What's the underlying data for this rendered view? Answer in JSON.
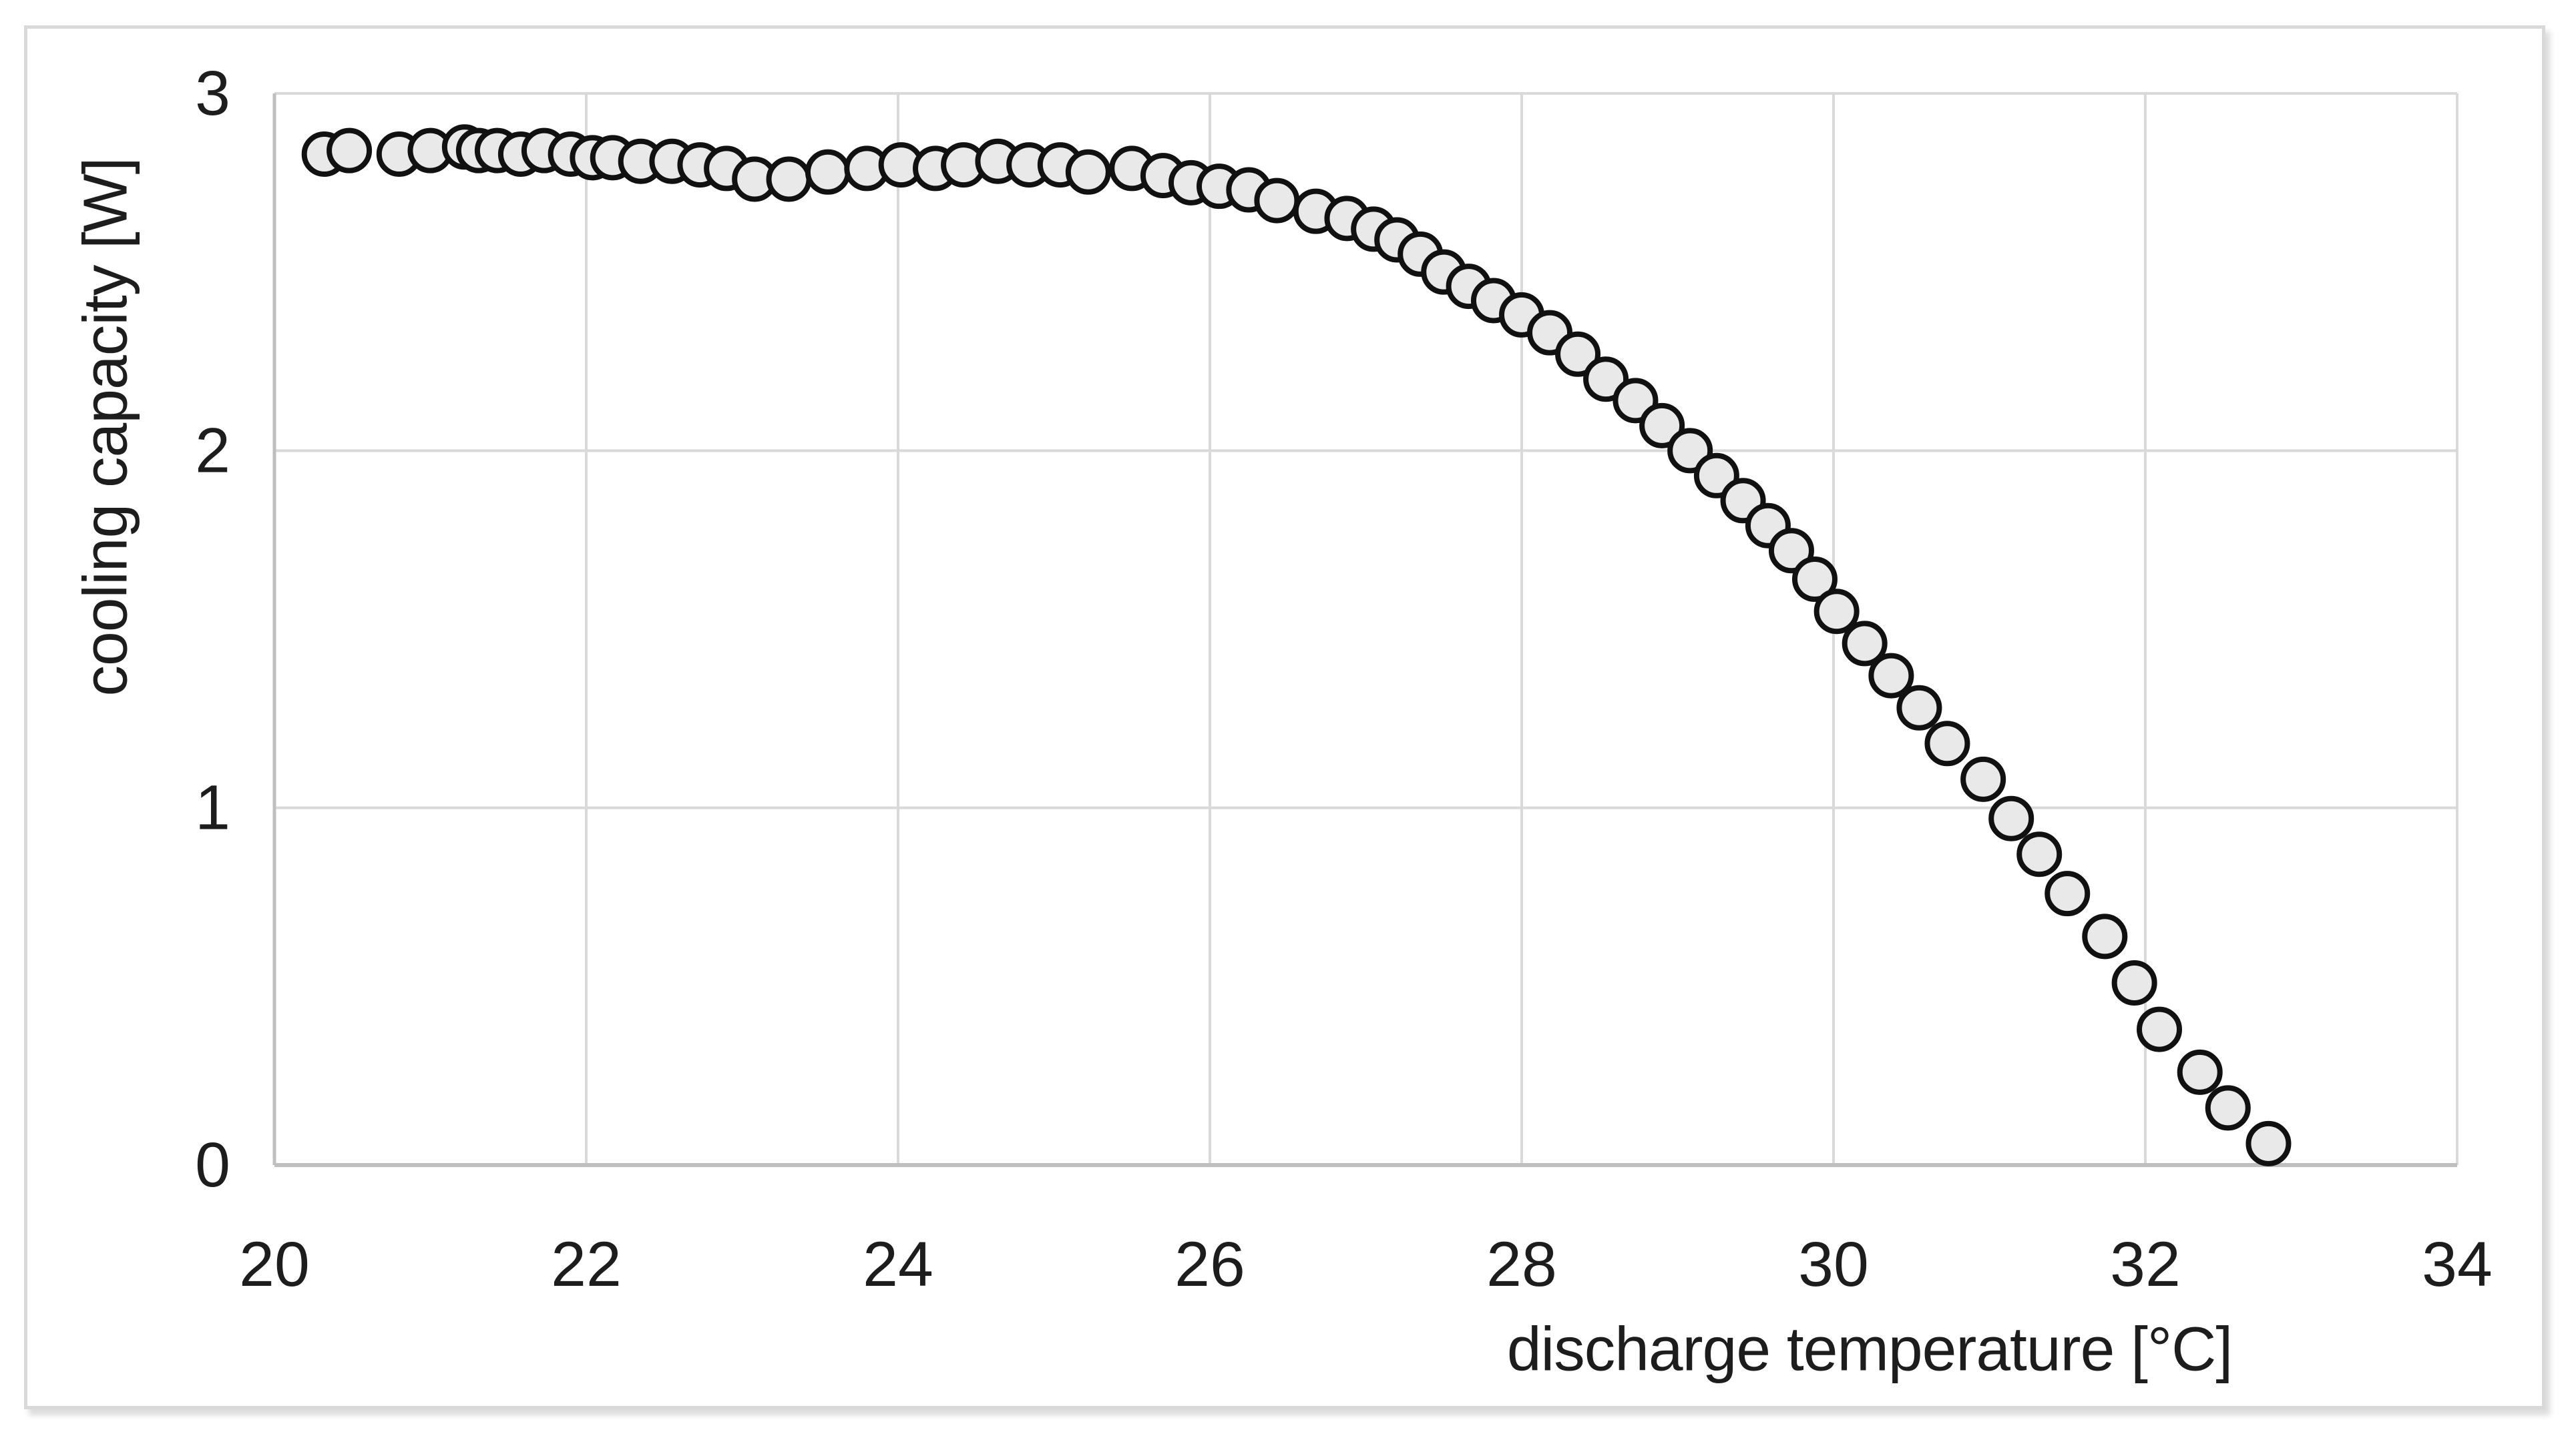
{
  "chart_data": {
    "type": "scatter",
    "title": "",
    "xlabel": "discharge temperature [°C]",
    "ylabel": "cooling capacity [W]",
    "xlim": [
      20,
      34
    ],
    "ylim": [
      0,
      3
    ],
    "x_ticks": [
      20,
      22,
      24,
      26,
      28,
      30,
      32,
      34
    ],
    "y_ticks": [
      0,
      1,
      2,
      3
    ],
    "grid": "on",
    "legend": "none",
    "series": [
      {
        "name": "cooling capacity",
        "marker": "circle",
        "points": [
          [
            20.32,
            2.83
          ],
          [
            20.48,
            2.84
          ],
          [
            20.8,
            2.83
          ],
          [
            21.0,
            2.84
          ],
          [
            21.22,
            2.85
          ],
          [
            21.31,
            2.84
          ],
          [
            21.43,
            2.84
          ],
          [
            21.58,
            2.83
          ],
          [
            21.73,
            2.84
          ],
          [
            21.9,
            2.83
          ],
          [
            22.04,
            2.82
          ],
          [
            22.17,
            2.82
          ],
          [
            22.35,
            2.81
          ],
          [
            22.55,
            2.81
          ],
          [
            22.73,
            2.8
          ],
          [
            22.9,
            2.79
          ],
          [
            23.08,
            2.76
          ],
          [
            23.3,
            2.76
          ],
          [
            23.55,
            2.78
          ],
          [
            23.8,
            2.79
          ],
          [
            24.02,
            2.8
          ],
          [
            24.24,
            2.79
          ],
          [
            24.42,
            2.8
          ],
          [
            24.64,
            2.81
          ],
          [
            24.84,
            2.8
          ],
          [
            25.04,
            2.8
          ],
          [
            25.22,
            2.78
          ],
          [
            25.5,
            2.79
          ],
          [
            25.7,
            2.77
          ],
          [
            25.88,
            2.75
          ],
          [
            26.06,
            2.74
          ],
          [
            26.25,
            2.73
          ],
          [
            26.43,
            2.7
          ],
          [
            26.68,
            2.67
          ],
          [
            26.88,
            2.65
          ],
          [
            27.05,
            2.62
          ],
          [
            27.2,
            2.59
          ],
          [
            27.35,
            2.55
          ],
          [
            27.5,
            2.5
          ],
          [
            27.66,
            2.46
          ],
          [
            27.82,
            2.42
          ],
          [
            28.0,
            2.38
          ],
          [
            28.18,
            2.33
          ],
          [
            28.36,
            2.27
          ],
          [
            28.54,
            2.2
          ],
          [
            28.73,
            2.14
          ],
          [
            28.9,
            2.07
          ],
          [
            29.08,
            2.0
          ],
          [
            29.25,
            1.93
          ],
          [
            29.42,
            1.86
          ],
          [
            29.58,
            1.79
          ],
          [
            29.73,
            1.72
          ],
          [
            29.88,
            1.64
          ],
          [
            30.02,
            1.55
          ],
          [
            30.2,
            1.46
          ],
          [
            30.37,
            1.37
          ],
          [
            30.55,
            1.28
          ],
          [
            30.73,
            1.18
          ],
          [
            30.96,
            1.08
          ],
          [
            31.14,
            0.97
          ],
          [
            31.32,
            0.87
          ],
          [
            31.5,
            0.76
          ],
          [
            31.74,
            0.64
          ],
          [
            31.93,
            0.51
          ],
          [
            32.09,
            0.38
          ],
          [
            32.35,
            0.26
          ],
          [
            32.53,
            0.16
          ],
          [
            32.79,
            0.06
          ]
        ]
      }
    ],
    "colors": {
      "marker_fill": "#e9e9e9",
      "marker_stroke": "#111111",
      "gridline": "#d9d9d9",
      "axis_line": "#bfbfbf",
      "tick_text": "#1d1d1d",
      "frame_border": "#d9d9d9",
      "background": "#ffffff"
    }
  }
}
